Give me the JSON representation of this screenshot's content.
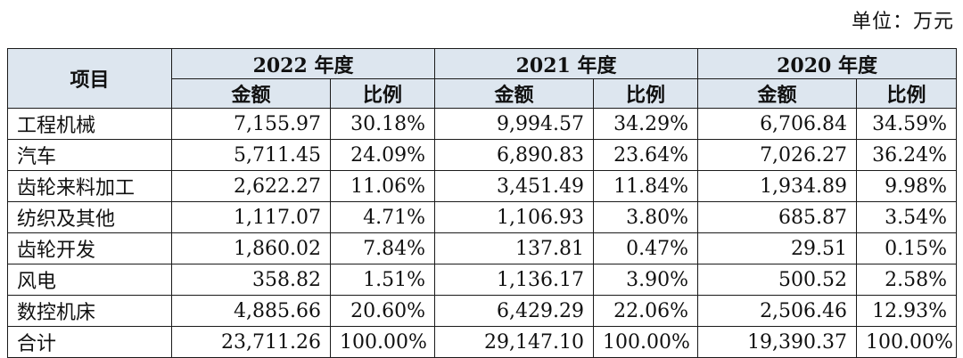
{
  "unit_label": "单位：万元",
  "header": {
    "item": "项目",
    "years": [
      "2022 年度",
      "2021 年度",
      "2020 年度"
    ],
    "amount": "金额",
    "ratio": "比例"
  },
  "rows": [
    {
      "name": "工程机械",
      "v": [
        "7,155.97",
        "30.18%",
        "9,994.57",
        "34.29%",
        "6,706.84",
        "34.59%"
      ]
    },
    {
      "name": "汽车",
      "v": [
        "5,711.45",
        "24.09%",
        "6,890.83",
        "23.64%",
        "7,026.27",
        "36.24%"
      ]
    },
    {
      "name": "齿轮来料加工",
      "v": [
        "2,622.27",
        "11.06%",
        "3,451.49",
        "11.84%",
        "1,934.89",
        "9.98%"
      ]
    },
    {
      "name": "纺织及其他",
      "v": [
        "1,117.07",
        "4.71%",
        "1,106.93",
        "3.80%",
        "685.87",
        "3.54%"
      ]
    },
    {
      "name": "齿轮开发",
      "v": [
        "1,860.02",
        "7.84%",
        "137.81",
        "0.47%",
        "29.51",
        "0.15%"
      ]
    },
    {
      "name": "风电",
      "v": [
        "358.82",
        "1.51%",
        "1,136.17",
        "3.90%",
        "500.52",
        "2.58%"
      ]
    },
    {
      "name": "数控机床",
      "v": [
        "4,885.66",
        "20.60%",
        "6,429.29",
        "22.06%",
        "2,506.46",
        "12.93%"
      ]
    },
    {
      "name": "合计",
      "v": [
        "23,711.26",
        "100.00%",
        "29,147.10",
        "100.00%",
        "19,390.37",
        "100.00%"
      ]
    }
  ]
}
